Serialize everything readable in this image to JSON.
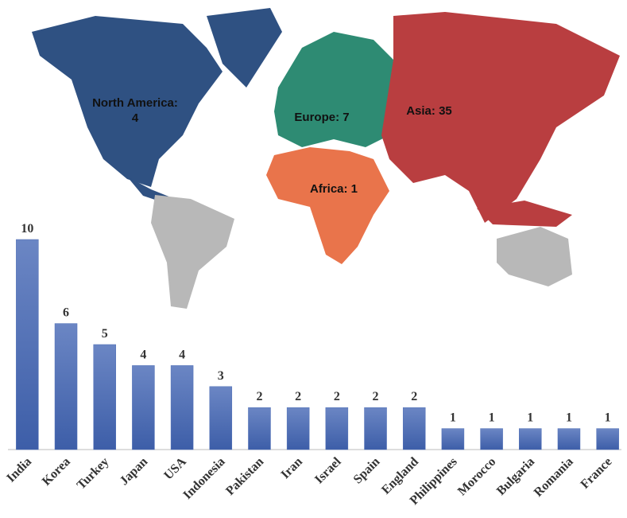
{
  "chart_data": {
    "type": "bar",
    "categories": [
      "India",
      "Korea",
      "Turkey",
      "Japan",
      "USA",
      "Indonesia",
      "Pakistan",
      "Iran",
      "Israel",
      "Spain",
      "England",
      "Philippines",
      "Morocco",
      "Bulgaria",
      "Romania",
      "France"
    ],
    "values": [
      10,
      6,
      5,
      4,
      4,
      3,
      2,
      2,
      2,
      2,
      2,
      1,
      1,
      1,
      1,
      1
    ],
    "color": "#4f6fb6",
    "ylim": [
      0,
      10
    ]
  },
  "map": {
    "regions": [
      {
        "label": "North America: 4",
        "color": "#2f5182"
      },
      {
        "label": "Europe: 7",
        "color": "#2e8b73"
      },
      {
        "label": "Asia: 35",
        "color": "#b93e40"
      },
      {
        "label": "Africa: 1",
        "color": "#e9744b"
      }
    ]
  }
}
